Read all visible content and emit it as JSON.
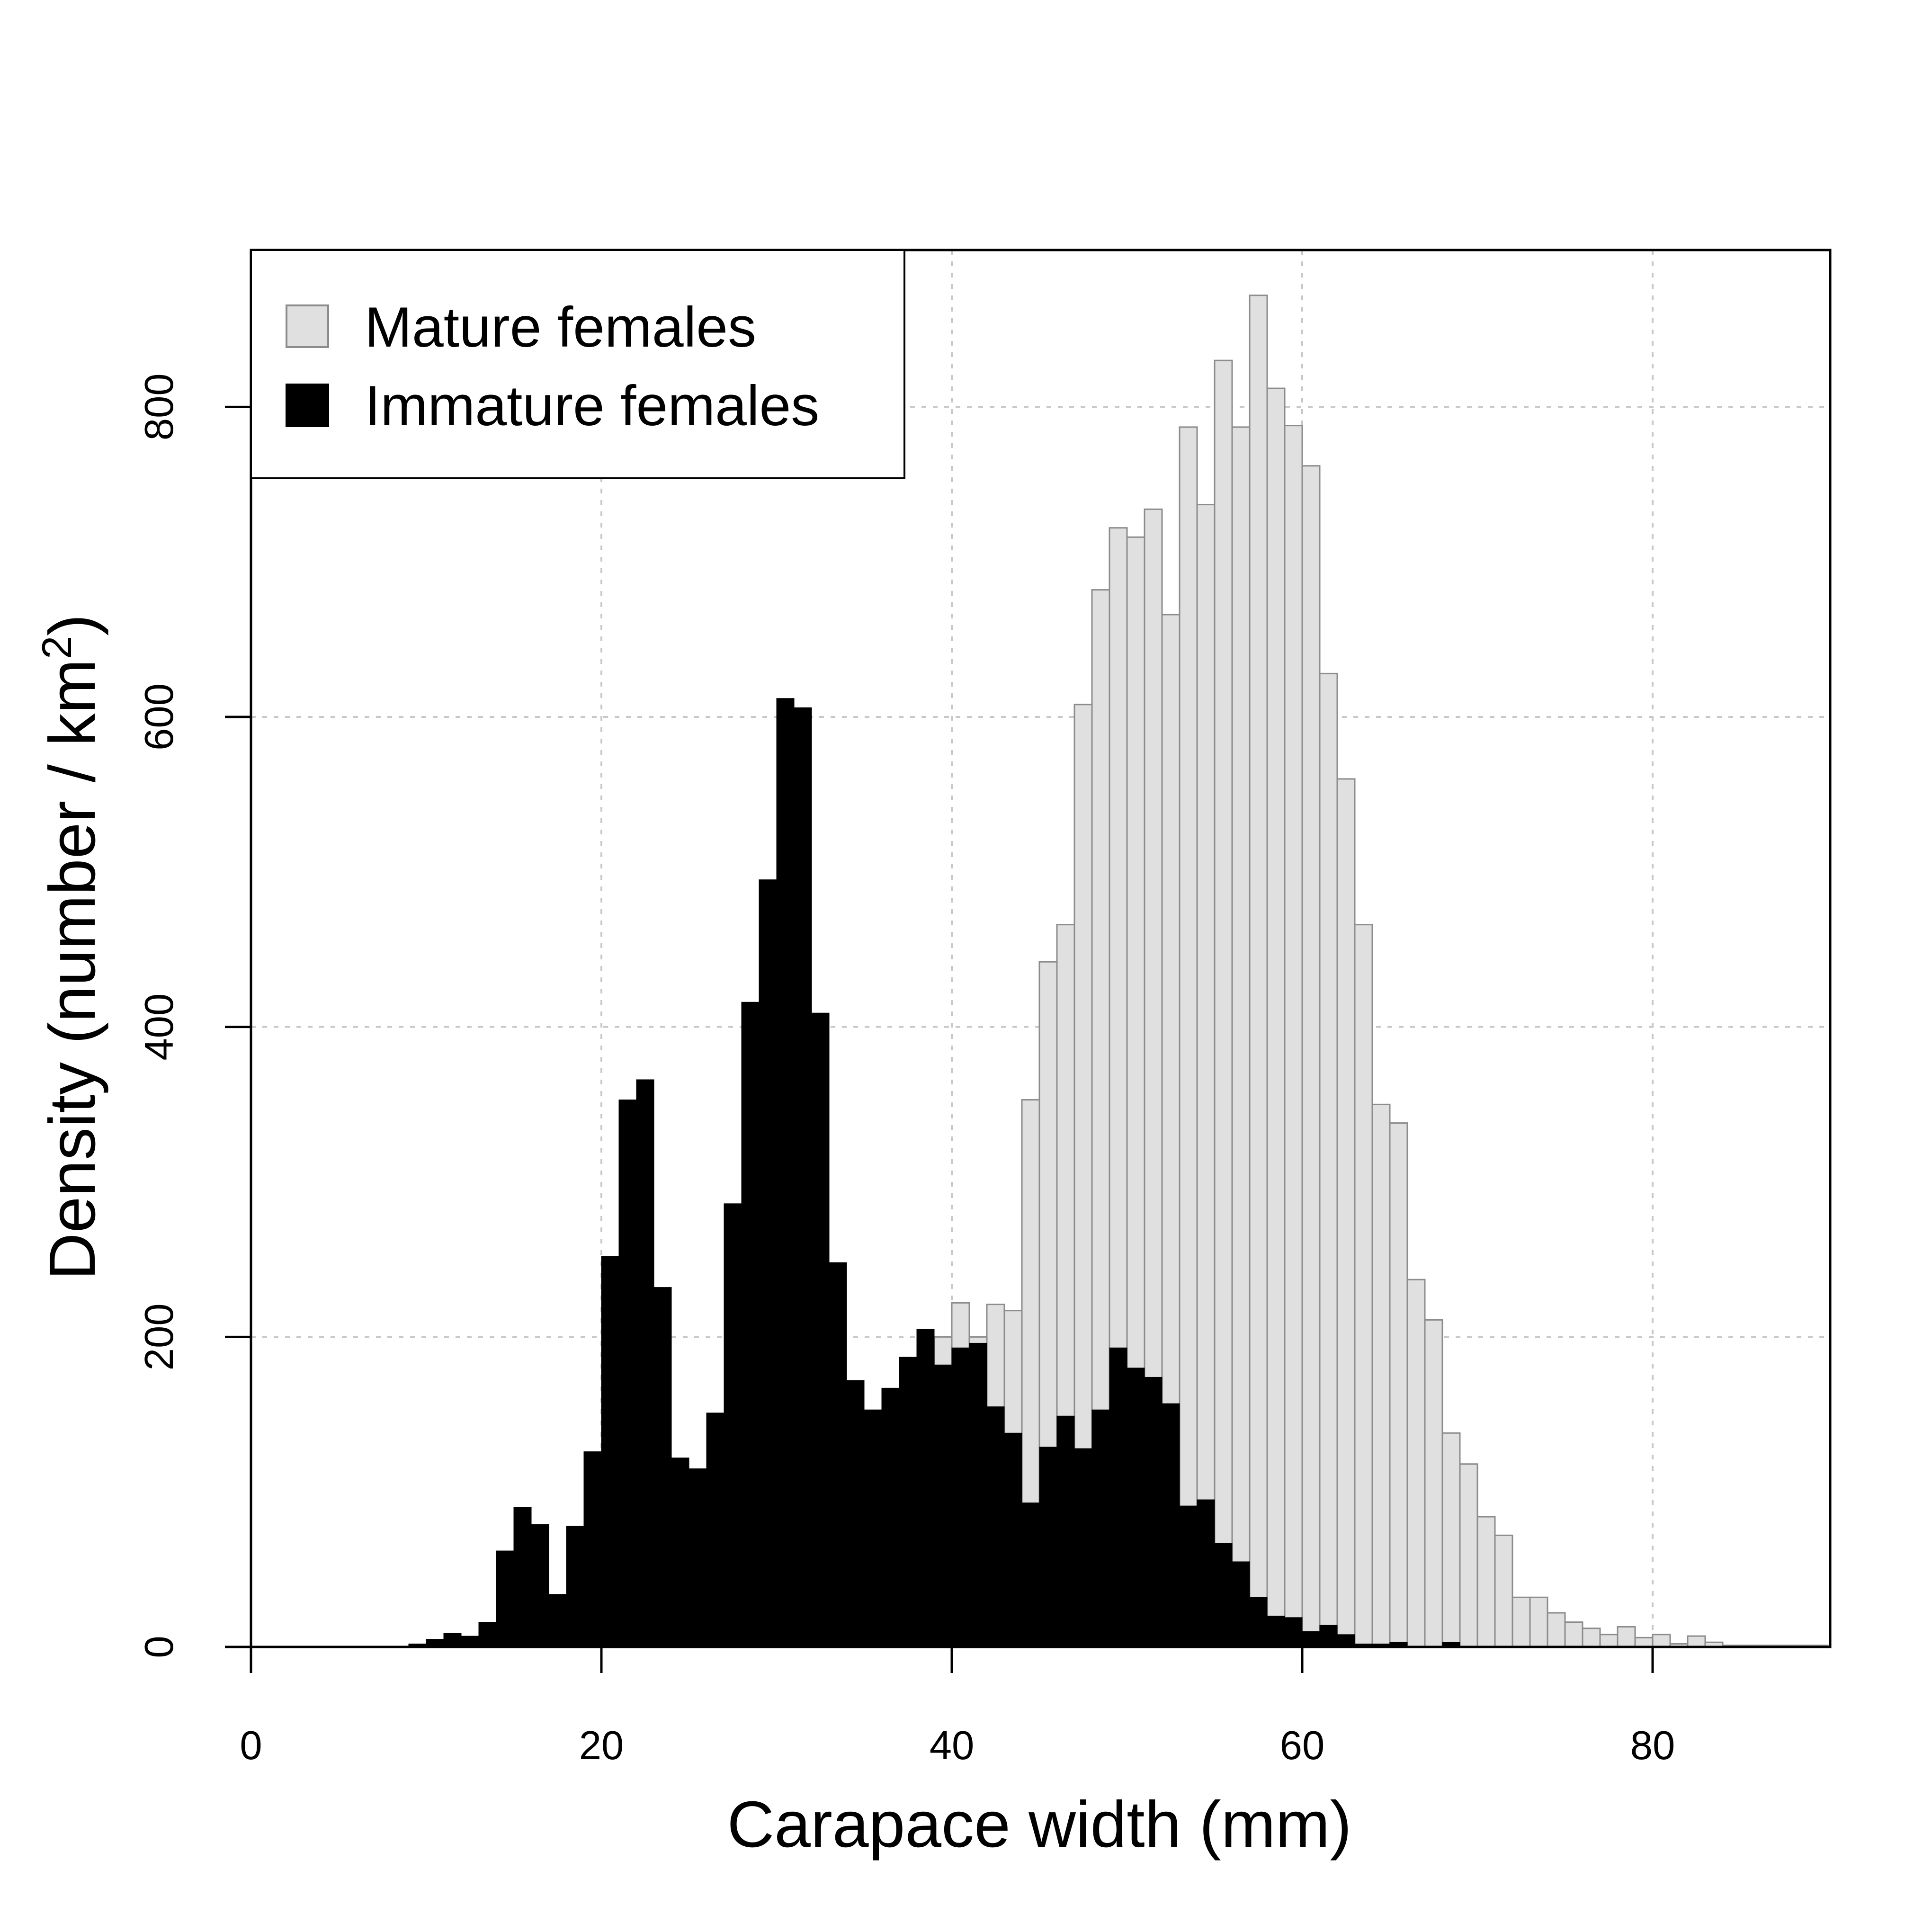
{
  "chart_data": {
    "type": "bar",
    "subtype": "overlaid histogram",
    "xlabel": "Carapace width (mm)",
    "ylabel_main": "Density (number / km",
    "ylabel_sup": "2",
    "ylabel_end": ")",
    "xlim": [
      0,
      90
    ],
    "ylim": [
      0,
      900
    ],
    "x_ticks": [
      "0",
      "20",
      "40",
      "60",
      "80"
    ],
    "y_ticks": [
      "0",
      "200",
      "400",
      "600",
      "800"
    ],
    "grid": true,
    "legend_position": "top-left",
    "bin_width": 1,
    "bin_starts": [
      0,
      1,
      2,
      3,
      4,
      5,
      6,
      7,
      8,
      9,
      10,
      11,
      12,
      13,
      14,
      15,
      16,
      17,
      18,
      19,
      20,
      21,
      22,
      23,
      24,
      25,
      26,
      27,
      28,
      29,
      30,
      31,
      32,
      33,
      34,
      35,
      36,
      37,
      38,
      39,
      40,
      41,
      42,
      43,
      44,
      45,
      46,
      47,
      48,
      49,
      50,
      51,
      52,
      53,
      54,
      55,
      56,
      57,
      58,
      59,
      60,
      61,
      62,
      63,
      64,
      65,
      66,
      67,
      68,
      69,
      70,
      71,
      72,
      73,
      74,
      75,
      76,
      77,
      78,
      79,
      80,
      81,
      82,
      83,
      84,
      85,
      86,
      87,
      88,
      89
    ],
    "series": [
      {
        "name": "Mature females",
        "color": "#e0e0e0",
        "stroke": "#8c8c8c",
        "values": [
          0,
          0,
          0,
          0,
          0,
          0,
          0,
          0,
          0,
          0,
          0,
          0,
          0,
          0,
          0,
          0,
          0,
          0,
          0,
          0,
          0,
          0,
          0,
          0,
          0,
          0,
          0,
          0,
          0,
          0,
          0,
          0,
          0,
          0,
          0,
          0,
          0,
          0,
          0,
          200,
          222,
          200,
          221,
          217,
          353,
          442,
          466,
          608,
          682,
          722,
          716,
          734,
          666,
          787,
          737,
          830,
          787,
          872,
          812,
          788,
          762,
          628,
          560,
          466,
          350,
          338,
          237,
          211,
          138,
          118,
          84,
          72,
          32,
          32,
          22,
          16,
          12,
          8,
          13,
          6,
          8,
          2,
          7,
          3,
          1,
          1,
          1,
          1,
          1,
          1
        ]
      },
      {
        "name": "Immature females",
        "color": "#000000",
        "stroke": "#000000",
        "values": [
          0,
          0,
          0,
          0,
          0,
          0,
          0,
          0,
          0,
          2,
          5,
          9,
          7,
          16,
          62,
          90,
          79,
          34,
          78,
          126,
          252,
          353,
          366,
          232,
          122,
          115,
          151,
          286,
          416,
          495,
          612,
          606,
          409,
          248,
          172,
          153,
          167,
          187,
          205,
          182,
          193,
          196,
          155,
          138,
          93,
          129,
          149,
          128,
          153,
          193,
          180,
          174,
          157,
          91,
          95,
          67,
          55,
          32,
          20,
          19,
          10,
          14,
          8,
          2,
          2,
          3,
          0,
          0,
          3,
          0,
          0,
          0,
          0,
          0,
          0,
          0,
          0,
          0,
          0,
          0,
          0,
          0,
          0,
          0,
          0,
          0,
          0,
          0,
          0,
          0
        ]
      }
    ]
  }
}
